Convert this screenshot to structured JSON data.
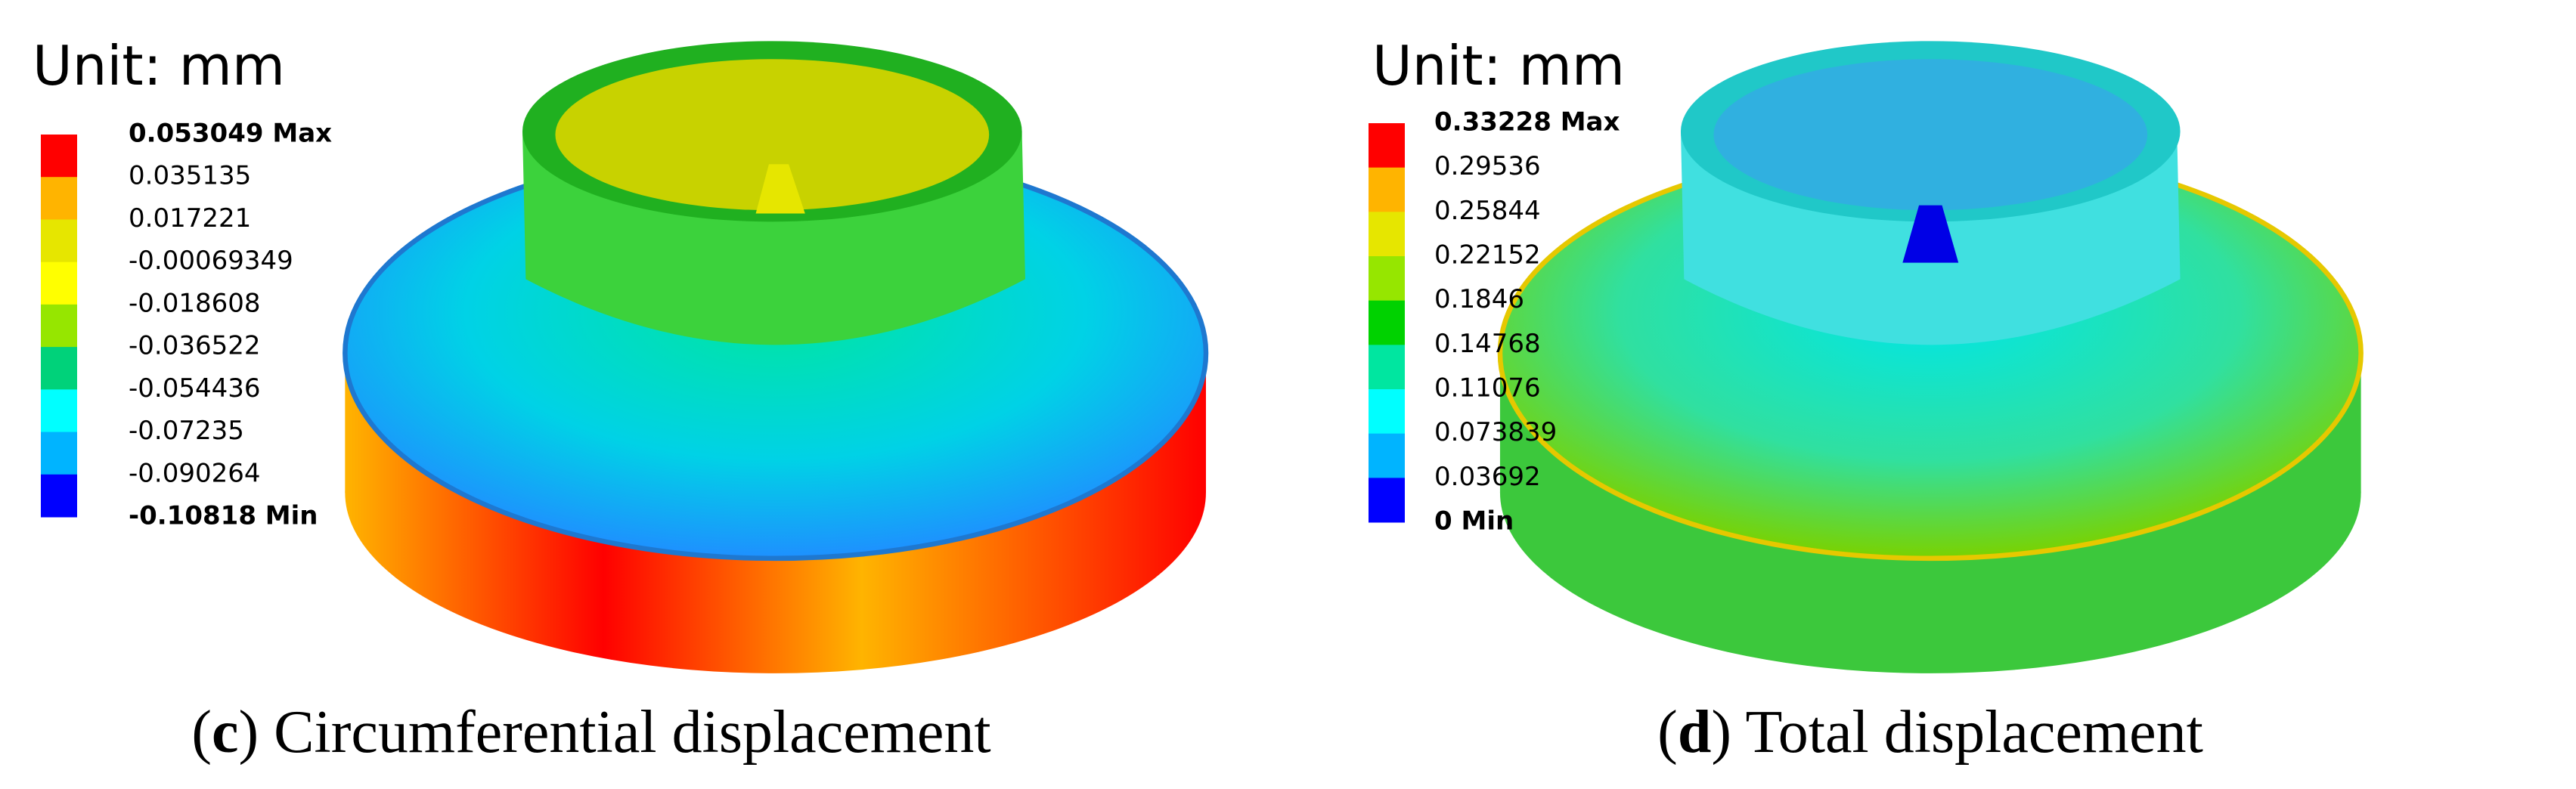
{
  "panels": [
    {
      "unit": "Unit: mm",
      "legend": {
        "colors": [
          "#ff0000",
          "#ffb400",
          "#e6e600",
          "#ffff00",
          "#96e600",
          "#00d27a",
          "#00ffff",
          "#00b4ff",
          "#0000ff"
        ],
        "labels": [
          "0.053049 Max",
          "0.035135",
          "0.017221",
          "-0.00069349",
          "-0.018608",
          "-0.036522",
          "-0.054436",
          "-0.07235",
          "-0.090264",
          "-0.10818 Min"
        ]
      },
      "caption": [
        "(",
        "c",
        ") Circumferential displacement"
      ]
    },
    {
      "unit": "Unit: mm",
      "legend": {
        "colors": [
          "#ff0000",
          "#ffb400",
          "#e6e600",
          "#96e600",
          "#00d200",
          "#00e6a0",
          "#00ffff",
          "#00b4ff",
          "#0000ff"
        ],
        "labels": [
          "0.33228 Max",
          "0.29536",
          "0.25844",
          "0.22152",
          "0.1846",
          "0.14768",
          "0.11076",
          "0.073839",
          "0.03692",
          "0 Min"
        ]
      },
      "caption": [
        "(",
        "d",
        ") Total displacement"
      ]
    }
  ]
}
